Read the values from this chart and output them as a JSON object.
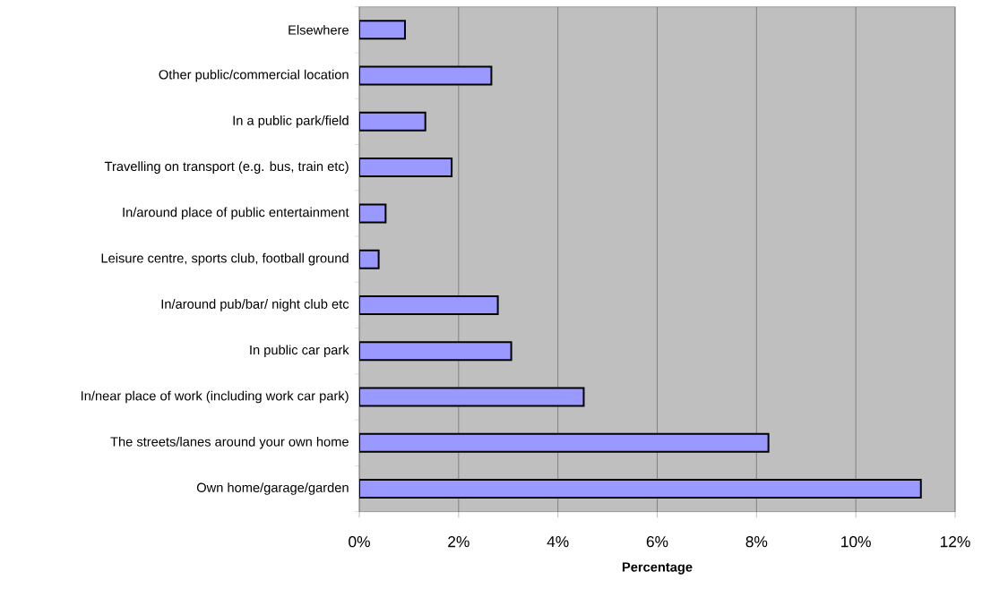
{
  "chart_data": {
    "type": "bar",
    "orientation": "horizontal",
    "xlabel": "Percentage",
    "categories": [
      "Elsewhere",
      "Other public/commercial location",
      "In a public park/field",
      "Travelling on transport (e.g. bus, train etc)",
      "In/around place of public entertainment",
      "Leisure centre, sports club, football ground",
      "In/around pub/bar/ night club etc",
      "In public car park",
      "In/near place of work (including work car park)",
      "The streets/lanes around your own home",
      "Own home/garage/garden"
    ],
    "values": [
      0.92,
      2.66,
      1.33,
      1.86,
      0.53,
      0.39,
      2.79,
      3.06,
      4.52,
      8.24,
      11.31
    ],
    "color": "#9999ff",
    "xlim": [
      0,
      12
    ],
    "xticks": [
      {
        "value": 0,
        "label": "0%"
      },
      {
        "value": 2,
        "label": "2%"
      },
      {
        "value": 4,
        "label": "4%"
      },
      {
        "value": 6,
        "label": "6%"
      },
      {
        "value": 8,
        "label": "8%"
      },
      {
        "value": 10,
        "label": "10%"
      },
      {
        "value": 12,
        "label": "12%"
      }
    ],
    "grid": "x"
  }
}
